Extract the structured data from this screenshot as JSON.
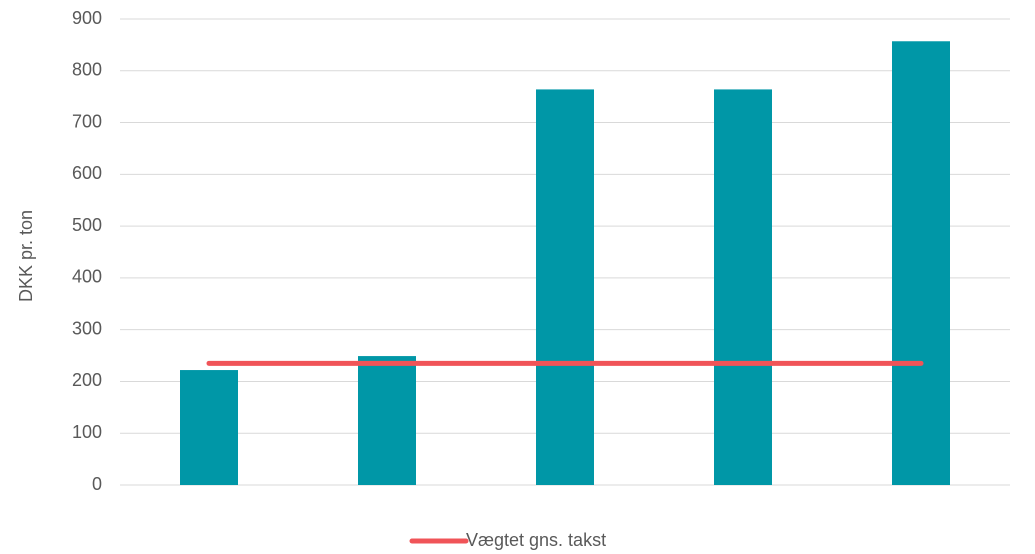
{
  "chart_data": {
    "type": "bar",
    "title": "",
    "xlabel": "",
    "ylabel": "DKK pr. ton",
    "ylim": [
      0,
      900
    ],
    "yticks": [
      0,
      100,
      200,
      300,
      400,
      500,
      600,
      700,
      800,
      900
    ],
    "categories": [
      "",
      "",
      "",
      "",
      ""
    ],
    "series": [
      {
        "values": [
          222,
          249,
          764,
          764,
          857
        ],
        "color": "#0097A7"
      }
    ],
    "reference_lines": [
      {
        "name": "Vægtet gns. takst",
        "value": 235,
        "color": "#F05458"
      }
    ],
    "grid": true,
    "legend": "bottom-center"
  }
}
